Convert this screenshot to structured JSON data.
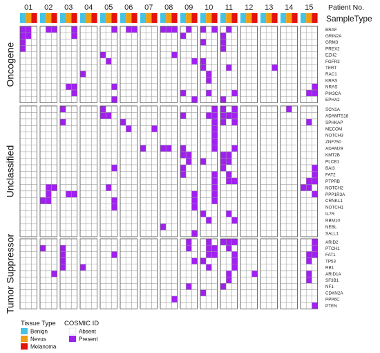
{
  "chart_data": {
    "type": "heatmap",
    "patients": [
      "01",
      "02",
      "03",
      "04",
      "05",
      "06",
      "07",
      "08",
      "09",
      "10",
      "11",
      "12",
      "13",
      "14",
      "15"
    ],
    "patient_header": "Patient No.",
    "sample_header": "SampleType",
    "sample_types": [
      {
        "name": "Benign",
        "color": "#45C3E3"
      },
      {
        "name": "Nevus",
        "color": "#F39C12"
      },
      {
        "name": "Melanoma",
        "color": "#E3120B"
      }
    ],
    "tissue_legend_title": "Tissue Type",
    "cosmic_legend_title": "COSMIC ID",
    "cosmic_states": [
      {
        "name": "Absent",
        "color": "#FFFFFF"
      },
      {
        "name": "Present",
        "color": "#A020F0"
      }
    ],
    "groups": [
      {
        "name": "Oncogene",
        "genes": [
          "BRAF",
          "GRIN2A",
          "GRM3",
          "PREX2",
          "EZH2",
          "FGFR3",
          "TERT",
          "RAC1",
          "KRAS",
          "NRAS",
          "PIK3CA",
          "EPHA2"
        ]
      },
      {
        "name": "Unclassified",
        "genes": [
          "SCN1A",
          "ADAMTS18",
          "SPHKAP",
          "MECOM",
          "NOTCH3",
          "ZNF750",
          "ADAM29",
          "KMT2B",
          "PLCB1",
          "BAI3",
          "FAT2",
          "PTPRB",
          "NOTCH2",
          "PPP1R3A",
          "CRNKL1",
          "NOTCH1",
          "IL7R",
          "RBM10",
          "NEBL",
          "SALL1"
        ]
      },
      {
        "name": "Tumor Suppressor",
        "genes": [
          "ARID2",
          "PTCH1",
          "FAT1",
          "TP53",
          "RB1",
          "ARID1A",
          "SF3B1",
          "NF1",
          "CDKN2A",
          "PPP6C",
          "PTEN"
        ]
      }
    ],
    "present": {
      "BRAF": [
        [
          1,
          1
        ],
        [
          1,
          2
        ],
        [
          2,
          2
        ],
        [
          2,
          3
        ],
        [
          3,
          3
        ],
        [
          5,
          3
        ],
        [
          6,
          2
        ],
        [
          6,
          3
        ],
        [
          8,
          1
        ],
        [
          8,
          2
        ],
        [
          8,
          3
        ],
        [
          9,
          2
        ],
        [
          10,
          1
        ],
        [
          10,
          3
        ],
        [
          11,
          2
        ]
      ],
      "GRIN2A": [
        [
          1,
          1
        ],
        [
          1,
          2
        ],
        [
          3,
          3
        ],
        [
          9,
          1
        ],
        [
          11,
          1
        ]
      ],
      "GRM3": [
        [
          1,
          1
        ],
        [
          10,
          1
        ],
        [
          11,
          1
        ]
      ],
      "PREX2": [
        [
          1,
          1
        ],
        [
          11,
          1
        ]
      ],
      "EZH2": [
        [
          5,
          1
        ],
        [
          8,
          3
        ]
      ],
      "FGFR3": [
        [
          5,
          2
        ],
        [
          9,
          3
        ],
        [
          10,
          1
        ]
      ],
      "TERT": [
        [
          10,
          1
        ],
        [
          11,
          2
        ],
        [
          13,
          3
        ]
      ],
      "RAC1": [
        [
          4,
          1
        ],
        [
          10,
          2
        ]
      ],
      "KRAS": [
        [
          10,
          2
        ]
      ],
      "NRAS": [
        [
          3,
          2
        ],
        [
          3,
          3
        ],
        [
          5,
          3
        ],
        [
          15,
          3
        ]
      ],
      "PIK3CA": [
        [
          3,
          3
        ],
        [
          9,
          1
        ],
        [
          10,
          2
        ],
        [
          11,
          3
        ],
        [
          15,
          2
        ],
        [
          15,
          3
        ]
      ],
      "EPHA2": [
        [
          5,
          3
        ],
        [
          9,
          3
        ],
        [
          11,
          1
        ]
      ],
      "SCN1A": [
        [
          3,
          1
        ],
        [
          5,
          1
        ],
        [
          10,
          3
        ],
        [
          11,
          1
        ],
        [
          11,
          3
        ],
        [
          14,
          2
        ]
      ],
      "ADAMTS18": [
        [
          5,
          1
        ],
        [
          5,
          2
        ],
        [
          9,
          1
        ],
        [
          10,
          2
        ],
        [
          10,
          3
        ],
        [
          11,
          1
        ],
        [
          11,
          2
        ],
        [
          11,
          3
        ]
      ],
      "SPHKAP": [
        [
          3,
          1
        ],
        [
          6,
          1
        ],
        [
          10,
          3
        ],
        [
          11,
          1
        ],
        [
          11,
          3
        ],
        [
          15,
          2
        ]
      ],
      "MECOM": [
        [
          6,
          2
        ],
        [
          7,
          3
        ],
        [
          10,
          3
        ]
      ],
      "NOTCH3": [
        [
          10,
          3
        ]
      ],
      "ZNF750": [
        [
          10,
          3
        ]
      ],
      "ADAM29": [
        [
          7,
          1
        ],
        [
          8,
          1
        ],
        [
          8,
          2
        ],
        [
          9,
          1
        ],
        [
          10,
          3
        ],
        [
          11,
          3
        ]
      ],
      "KMT2B": [
        [
          9,
          1
        ],
        [
          9,
          2
        ],
        [
          11,
          1
        ],
        [
          11,
          2
        ]
      ],
      "PLCB1": [
        [
          9,
          2
        ],
        [
          10,
          1
        ],
        [
          11,
          1
        ],
        [
          11,
          2
        ]
      ],
      "BAI3": [
        [
          5,
          3
        ],
        [
          9,
          1
        ],
        [
          11,
          1
        ],
        [
          15,
          3
        ]
      ],
      "FAT2": [
        [
          9,
          1
        ],
        [
          10,
          3
        ],
        [
          11,
          2
        ],
        [
          15,
          3
        ]
      ],
      "PTPRB": [
        [
          10,
          3
        ],
        [
          11,
          2
        ],
        [
          11,
          3
        ],
        [
          15,
          2
        ],
        [
          15,
          3
        ]
      ],
      "NOTCH2": [
        [
          2,
          2
        ],
        [
          2,
          3
        ],
        [
          5,
          2
        ],
        [
          10,
          3
        ],
        [
          15,
          1
        ],
        [
          15,
          2
        ]
      ],
      "PPP1R3A": [
        [
          2,
          2
        ],
        [
          3,
          2
        ],
        [
          3,
          3
        ],
        [
          9,
          3
        ],
        [
          10,
          3
        ],
        [
          15,
          3
        ]
      ],
      "CRNKL1": [
        [
          2,
          1
        ],
        [
          2,
          2
        ],
        [
          5,
          3
        ],
        [
          9,
          3
        ],
        [
          10,
          3
        ]
      ],
      "NOTCH1": [
        [
          5,
          3
        ],
        [
          9,
          3
        ]
      ],
      "IL7R": [
        [
          10,
          1
        ],
        [
          11,
          2
        ]
      ],
      "RBM10": [
        [
          10,
          2
        ],
        [
          11,
          3
        ]
      ],
      "NEBL": [
        [
          8,
          1
        ]
      ],
      "SALL1": [
        [
          9,
          3
        ]
      ],
      "ARID2": [
        [
          9,
          2
        ],
        [
          10,
          2
        ],
        [
          11,
          1
        ],
        [
          11,
          2
        ],
        [
          11,
          3
        ],
        [
          15,
          3
        ]
      ],
      "PTCH1": [
        [
          2,
          1
        ],
        [
          3,
          1
        ],
        [
          9,
          2
        ],
        [
          10,
          2
        ],
        [
          10,
          3
        ],
        [
          11,
          2
        ],
        [
          15,
          3
        ]
      ],
      "FAT1": [
        [
          3,
          1
        ],
        [
          5,
          3
        ],
        [
          10,
          2
        ],
        [
          10,
          3
        ],
        [
          11,
          3
        ],
        [
          15,
          2
        ],
        [
          15,
          3
        ]
      ],
      "TP53": [
        [
          3,
          1
        ],
        [
          9,
          3
        ],
        [
          10,
          1
        ],
        [
          11,
          3
        ],
        [
          15,
          2
        ]
      ],
      "RB1": [
        [
          3,
          1
        ],
        [
          4,
          1
        ],
        [
          10,
          2
        ],
        [
          11,
          3
        ]
      ],
      "ARID1A": [
        [
          2,
          3
        ],
        [
          11,
          2
        ],
        [
          12,
          3
        ],
        [
          15,
          2
        ]
      ],
      "SF3B1": [
        [
          11,
          2
        ],
        [
          15,
          2
        ]
      ],
      "NF1": [
        [
          9,
          2
        ],
        [
          11,
          1
        ]
      ],
      "CDKN2A": [
        [
          10,
          1
        ]
      ],
      "PPP6C": [
        [
          8,
          3
        ]
      ],
      "PTEN": [
        [
          15,
          3
        ]
      ]
    }
  }
}
